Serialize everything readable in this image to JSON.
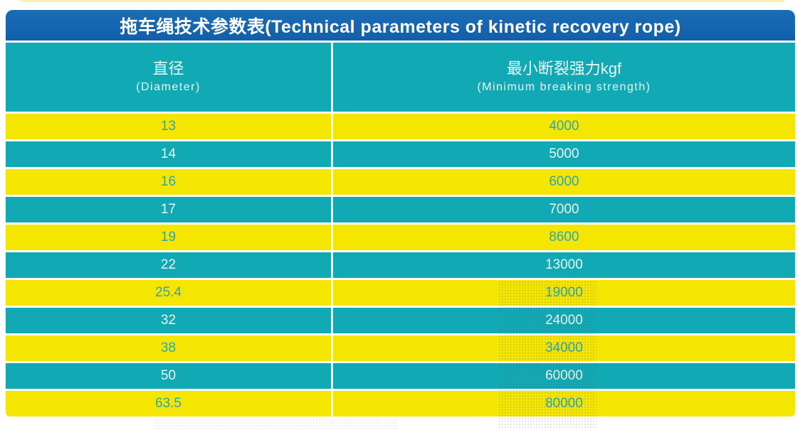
{
  "title": "拖车绳技术参数表(Technical parameters of kinetic recovery rope)",
  "header": {
    "col1_zh": "直径",
    "col1_en": "(Diameter)",
    "col2_zh": "最小断裂强力kgf",
    "col2_en": "(Minimum breaking strength)"
  },
  "chart_data": {
    "type": "table",
    "title": "拖车绳技术参数表(Technical parameters of kinetic recovery rope)",
    "columns": [
      "直径 (Diameter)",
      "最小断裂强力kgf (Minimum breaking strength)"
    ],
    "rows": [
      [
        "13",
        "4000"
      ],
      [
        "14",
        "5000"
      ],
      [
        "16",
        "6000"
      ],
      [
        "17",
        "7000"
      ],
      [
        "19",
        "8600"
      ],
      [
        "22",
        "13000"
      ],
      [
        "25.4",
        "19000"
      ],
      [
        "32",
        "24000"
      ],
      [
        "38",
        "34000"
      ],
      [
        "50",
        "60000"
      ],
      [
        "63.5",
        "80000"
      ]
    ],
    "row_stripe_pattern": [
      "yellow",
      "teal"
    ],
    "legend_position": "none",
    "grid": false
  },
  "colors": {
    "title_bar_blue": "#1565b0",
    "cell_teal": "#10a9b4",
    "cell_yellow": "#f4e600",
    "text_on_yellow": "#2aa7b6",
    "text_on_teal": "#e9fafa",
    "title_text": "#ffffff"
  }
}
